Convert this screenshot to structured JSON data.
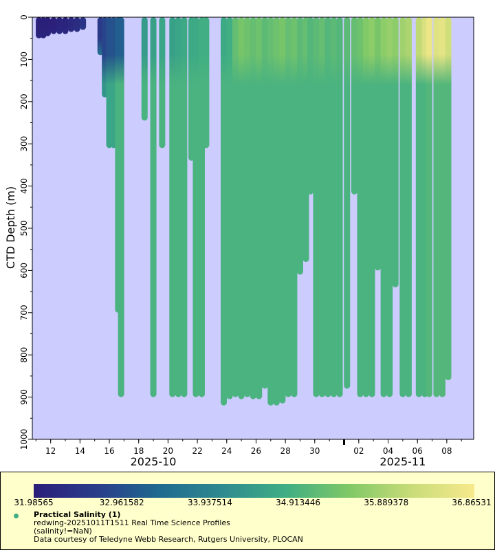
{
  "chart_data": {
    "type": "scatter",
    "description_axes": "time vs depth profile scatter colored by salinity",
    "ylabel": "CTD Depth (m)",
    "ylim": [
      1000,
      0
    ],
    "y_ticks": [
      0,
      100,
      200,
      300,
      400,
      500,
      600,
      700,
      800,
      900,
      1000
    ],
    "xlim": [
      "2025-10-10T18:00",
      "2025-11-09T20:00"
    ],
    "x_ticks": [
      {
        "date": "2025-10-12",
        "label": "12"
      },
      {
        "date": "2025-10-14",
        "label": "14"
      },
      {
        "date": "2025-10-16",
        "label": "16"
      },
      {
        "date": "2025-10-18",
        "label": "18"
      },
      {
        "date": "2025-10-20",
        "label": "20"
      },
      {
        "date": "2025-10-22",
        "label": "22"
      },
      {
        "date": "2025-10-24",
        "label": "24"
      },
      {
        "date": "2025-10-26",
        "label": "26"
      },
      {
        "date": "2025-10-28",
        "label": "28"
      },
      {
        "date": "2025-10-30",
        "label": "30"
      },
      {
        "date": "2025-11-02",
        "label": "02"
      },
      {
        "date": "2025-11-04",
        "label": "04"
      },
      {
        "date": "2025-11-06",
        "label": "06"
      },
      {
        "date": "2025-11-08",
        "label": "08"
      }
    ],
    "month_labels": [
      {
        "date": "2025-10-19",
        "label": "2025-10"
      },
      {
        "date": "2025-11-05",
        "label": "2025-11"
      }
    ],
    "month_boundary": "2025-11-01",
    "colorbar": {
      "min": 31.98565,
      "max": 36.86531,
      "tick_labels": [
        "31.98565",
        "32.961582",
        "33.937514",
        "34.913446",
        "35.889378",
        "36.86531"
      ],
      "stops": [
        "#2a1f7a",
        "#2a3c8a",
        "#1f6a8f",
        "#2f8a8f",
        "#3fae84",
        "#7fc866",
        "#c8dc78",
        "#f7e98c"
      ]
    },
    "profiles": [
      {
        "day": 11.2,
        "max_depth": 50,
        "surface_sal": 32.0,
        "deep_sal": 32.1
      },
      {
        "day": 11.5,
        "max_depth": 50,
        "surface_sal": 32.0,
        "deep_sal": 32.1
      },
      {
        "day": 11.8,
        "max_depth": 45,
        "surface_sal": 32.0,
        "deep_sal": 32.1
      },
      {
        "day": 12.2,
        "max_depth": 40,
        "surface_sal": 32.0,
        "deep_sal": 32.1
      },
      {
        "day": 12.6,
        "max_depth": 40,
        "surface_sal": 32.1,
        "deep_sal": 32.2
      },
      {
        "day": 13.0,
        "max_depth": 40,
        "surface_sal": 32.1,
        "deep_sal": 32.2
      },
      {
        "day": 13.4,
        "max_depth": 35,
        "surface_sal": 32.2,
        "deep_sal": 32.3
      },
      {
        "day": 13.8,
        "max_depth": 35,
        "surface_sal": 32.3,
        "deep_sal": 32.4
      },
      {
        "day": 14.2,
        "max_depth": 30,
        "surface_sal": 32.5,
        "deep_sal": 32.6
      },
      {
        "day": 15.4,
        "max_depth": 90,
        "surface_sal": 32.6,
        "deep_sal": 33.6
      },
      {
        "day": 15.7,
        "max_depth": 190,
        "surface_sal": 32.8,
        "deep_sal": 34.3
      },
      {
        "day": 16.0,
        "max_depth": 310,
        "surface_sal": 33.0,
        "deep_sal": 34.6
      },
      {
        "day": 16.3,
        "max_depth": 310,
        "surface_sal": 33.0,
        "deep_sal": 34.6
      },
      {
        "day": 16.6,
        "max_depth": 700,
        "surface_sal": 33.2,
        "deep_sal": 34.9
      },
      {
        "day": 16.8,
        "max_depth": 900,
        "surface_sal": 33.2,
        "deep_sal": 34.9
      },
      {
        "day": 18.4,
        "max_depth": 245,
        "surface_sal": 34.4,
        "deep_sal": 34.9
      },
      {
        "day": 19.0,
        "max_depth": 900,
        "surface_sal": 34.5,
        "deep_sal": 34.9
      },
      {
        "day": 19.6,
        "max_depth": 310,
        "surface_sal": 34.6,
        "deep_sal": 34.9
      },
      {
        "day": 20.3,
        "max_depth": 900,
        "surface_sal": 34.5,
        "deep_sal": 34.9
      },
      {
        "day": 20.7,
        "max_depth": 900,
        "surface_sal": 34.6,
        "deep_sal": 34.9
      },
      {
        "day": 21.1,
        "max_depth": 900,
        "surface_sal": 34.7,
        "deep_sal": 34.9
      },
      {
        "day": 21.6,
        "max_depth": 340,
        "surface_sal": 34.7,
        "deep_sal": 34.9
      },
      {
        "day": 21.9,
        "max_depth": 900,
        "surface_sal": 34.7,
        "deep_sal": 34.9
      },
      {
        "day": 22.3,
        "max_depth": 900,
        "surface_sal": 34.8,
        "deep_sal": 34.9
      },
      {
        "day": 22.6,
        "max_depth": 310,
        "surface_sal": 34.8,
        "deep_sal": 34.9
      },
      {
        "day": 23.8,
        "max_depth": 920,
        "surface_sal": 34.7,
        "deep_sal": 34.9
      },
      {
        "day": 24.2,
        "max_depth": 905,
        "surface_sal": 34.8,
        "deep_sal": 34.9
      },
      {
        "day": 24.6,
        "max_depth": 900,
        "surface_sal": 35.2,
        "deep_sal": 34.9
      },
      {
        "day": 25.0,
        "max_depth": 905,
        "surface_sal": 35.4,
        "deep_sal": 34.9
      },
      {
        "day": 25.4,
        "max_depth": 900,
        "surface_sal": 35.3,
        "deep_sal": 34.9
      },
      {
        "day": 25.8,
        "max_depth": 905,
        "surface_sal": 35.2,
        "deep_sal": 34.9
      },
      {
        "day": 26.2,
        "max_depth": 905,
        "surface_sal": 35.3,
        "deep_sal": 34.9
      },
      {
        "day": 26.6,
        "max_depth": 880,
        "surface_sal": 35.1,
        "deep_sal": 34.9
      },
      {
        "day": 27.0,
        "max_depth": 920,
        "surface_sal": 35.2,
        "deep_sal": 34.9
      },
      {
        "day": 27.4,
        "max_depth": 920,
        "surface_sal": 35.3,
        "deep_sal": 34.9
      },
      {
        "day": 27.8,
        "max_depth": 915,
        "surface_sal": 35.4,
        "deep_sal": 34.9
      },
      {
        "day": 28.2,
        "max_depth": 900,
        "surface_sal": 35.2,
        "deep_sal": 34.9
      },
      {
        "day": 28.6,
        "max_depth": 900,
        "surface_sal": 35.3,
        "deep_sal": 34.9
      },
      {
        "day": 29.0,
        "max_depth": 610,
        "surface_sal": 35.1,
        "deep_sal": 34.9
      },
      {
        "day": 29.4,
        "max_depth": 580,
        "surface_sal": 35.2,
        "deep_sal": 34.9
      },
      {
        "day": 29.7,
        "max_depth": 420,
        "surface_sal": 35.0,
        "deep_sal": 34.9
      },
      {
        "day": 30.1,
        "max_depth": 900,
        "surface_sal": 35.1,
        "deep_sal": 34.9
      },
      {
        "day": 30.5,
        "max_depth": 900,
        "surface_sal": 35.2,
        "deep_sal": 34.9
      },
      {
        "day": 30.9,
        "max_depth": 900,
        "surface_sal": 35.0,
        "deep_sal": 34.9
      },
      {
        "day": 31.3,
        "max_depth": 900,
        "surface_sal": 35.1,
        "deep_sal": 34.9
      },
      {
        "day": 31.7,
        "max_depth": 900,
        "surface_sal": 35.0,
        "deep_sal": 34.9
      },
      {
        "day": 32.2,
        "max_depth": 880,
        "surface_sal": 35.1,
        "deep_sal": 34.9
      },
      {
        "day": 32.7,
        "max_depth": 420,
        "surface_sal": 35.2,
        "deep_sal": 34.9
      },
      {
        "day": 33.1,
        "max_depth": 900,
        "surface_sal": 35.3,
        "deep_sal": 34.9
      },
      {
        "day": 33.5,
        "max_depth": 900,
        "surface_sal": 35.5,
        "deep_sal": 34.9
      },
      {
        "day": 33.9,
        "max_depth": 900,
        "surface_sal": 35.6,
        "deep_sal": 34.9
      },
      {
        "day": 34.3,
        "max_depth": 600,
        "surface_sal": 35.4,
        "deep_sal": 34.9
      },
      {
        "day": 34.7,
        "max_depth": 900,
        "surface_sal": 35.6,
        "deep_sal": 34.9
      },
      {
        "day": 35.1,
        "max_depth": 900,
        "surface_sal": 35.7,
        "deep_sal": 34.9
      },
      {
        "day": 35.5,
        "max_depth": 640,
        "surface_sal": 35.6,
        "deep_sal": 34.9
      },
      {
        "day": 36.0,
        "max_depth": 900,
        "surface_sal": 35.8,
        "deep_sal": 34.9
      },
      {
        "day": 36.4,
        "max_depth": 900,
        "surface_sal": 35.9,
        "deep_sal": 34.9
      },
      {
        "day": 37.1,
        "max_depth": 900,
        "surface_sal": 36.1,
        "deep_sal": 34.9
      },
      {
        "day": 37.5,
        "max_depth": 900,
        "surface_sal": 36.4,
        "deep_sal": 34.9
      },
      {
        "day": 37.8,
        "max_depth": 900,
        "surface_sal": 36.7,
        "deep_sal": 35.0
      },
      {
        "day": 38.3,
        "max_depth": 900,
        "surface_sal": 36.5,
        "deep_sal": 35.0
      },
      {
        "day": 38.7,
        "max_depth": 900,
        "surface_sal": 36.6,
        "deep_sal": 35.0
      },
      {
        "day": 39.1,
        "max_depth": 860,
        "surface_sal": 36.3,
        "deep_sal": 35.0
      }
    ]
  },
  "legend": {
    "variable": "Practical Salinity (1)",
    "dataset": "redwing-20251011T1511 Real Time Science Profiles",
    "constraint": "(salinity!=NaN)",
    "credit": "Data courtesy of Teledyne Webb Research, Rutgers University, PLOCAN"
  }
}
